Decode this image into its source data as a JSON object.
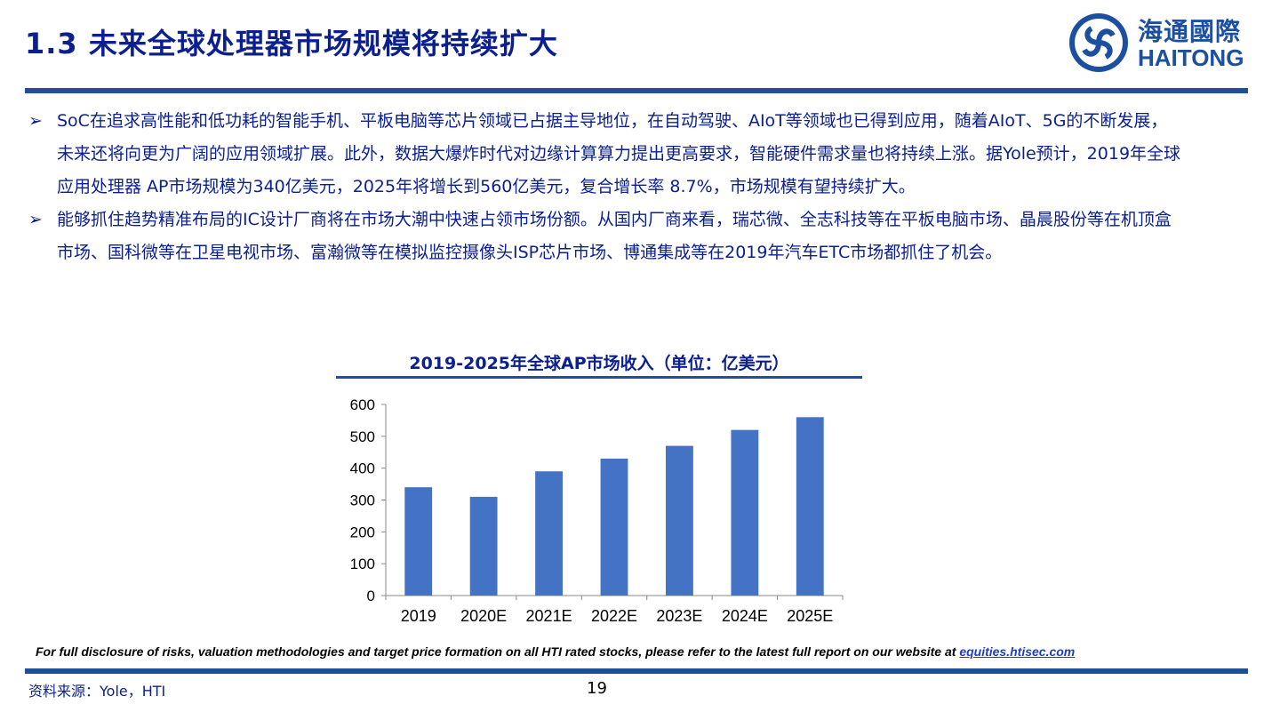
{
  "header": {
    "title": "1.3  未来全球处理器市场规模将持续扩大",
    "logo_cn": "海通國際",
    "logo_en": "HAITONG"
  },
  "body": {
    "bullet_icon": "arrow-bullet-icon",
    "bullet_glyph": "➢",
    "paragraphs": [
      "SoC在追求高性能和低功耗的智能手机、平板电脑等芯片领域已占据主导地位，在自动驾驶、AIoT等领域也已得到应用，随着AIoT、5G的不断发展，未来还将向更为广阔的应用领域扩展。此外，数据大爆炸时代对边缘计算算力提出更高要求，智能硬件需求量也将持续上涨。据Yole预计，2019年全球应用处理器 AP市场规模为340亿美元，2025年将增长到560亿美元，复合增长率 8.7%，市场规模有望持续扩大。",
      "能够抓住趋势精准布局的IC设计厂商将在市场大潮中快速占领市场份额。从国内厂商来看，瑞芯微、全志科技等在平板电脑市场、晶晨股份等在机顶盒市场、国科微等在卫星电视市场、富瀚微等在模拟监控摄像头ISP芯片市场、博通集成等在2019年汽车ETC市场都抓住了机会。"
    ]
  },
  "chart_data": {
    "type": "bar",
    "title": "2019-2025年全球AP市场收入（单位：亿美元）",
    "categories": [
      "2019",
      "2020E",
      "2021E",
      "2022E",
      "2023E",
      "2024E",
      "2025E"
    ],
    "values": [
      340,
      310,
      390,
      430,
      470,
      520,
      560
    ],
    "yticks": [
      "0",
      "100",
      "200",
      "300",
      "400",
      "500",
      "600"
    ],
    "ylim": [
      0,
      600
    ],
    "grid": false,
    "bar_color": "#4472c4"
  },
  "footer": {
    "disclaimer": "For full disclosure of risks, valuation methodologies and target price formation on all HTI rated stocks, please refer to the latest full report on our website at ",
    "link": "equities.htisec.com",
    "source": "资料来源：Yole，HTI",
    "page": "19"
  },
  "colors": {
    "brand": "#1f4e9c",
    "text": "#0b1f8f"
  }
}
